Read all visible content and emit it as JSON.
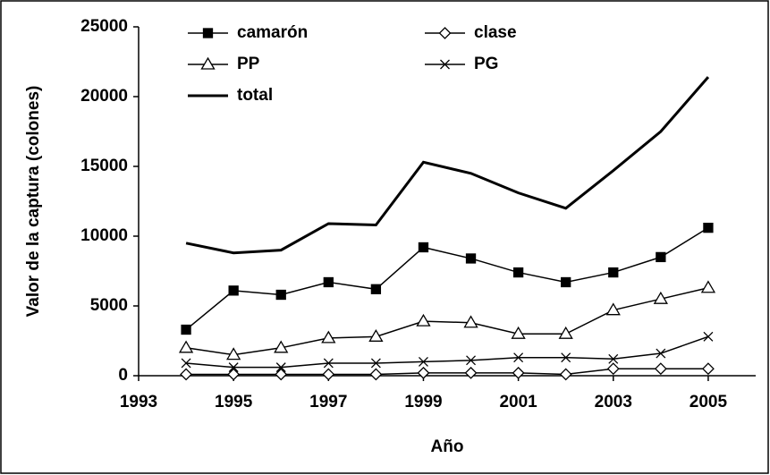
{
  "chart_data": {
    "type": "line",
    "x_label": "Año",
    "y_label": "Valor de la captura (colones)",
    "x": [
      1994,
      1995,
      1996,
      1997,
      1998,
      1999,
      2000,
      2001,
      2002,
      2003,
      2004,
      2005
    ],
    "series": [
      {
        "name": "camarón",
        "color": "#000000",
        "marker": "square",
        "values": [
          3300,
          6100,
          5800,
          6700,
          6200,
          9200,
          8400,
          7400,
          6700,
          7400,
          8500,
          10600
        ]
      },
      {
        "name": "clase",
        "color": "#000000",
        "marker": "diamond",
        "values": [
          100,
          100,
          100,
          100,
          100,
          200,
          200,
          200,
          100,
          500,
          500,
          500
        ]
      },
      {
        "name": "PP",
        "color": "#000000",
        "marker": "triangle",
        "values": [
          2000,
          1500,
          2000,
          2700,
          2800,
          3900,
          3800,
          3000,
          3000,
          4700,
          5500,
          6300
        ]
      },
      {
        "name": "PG",
        "color": "#000000",
        "marker": "x",
        "values": [
          900,
          600,
          600,
          900,
          900,
          1000,
          1100,
          1300,
          1300,
          1200,
          1600,
          2800
        ]
      },
      {
        "name": "total",
        "color": "#000000",
        "marker": "none",
        "values": [
          9500,
          8800,
          9000,
          10900,
          10800,
          15300,
          14500,
          13100,
          12000,
          14700,
          17500,
          21400
        ]
      }
    ],
    "xlim": [
      1993,
      2006
    ],
    "xticks": [
      1993,
      1995,
      1997,
      1999,
      2001,
      2003,
      2005
    ],
    "ylim": [
      0,
      25000
    ],
    "yticks": [
      0,
      5000,
      10000,
      15000,
      20000,
      25000
    ],
    "grid": false,
    "legend": "upper left"
  }
}
